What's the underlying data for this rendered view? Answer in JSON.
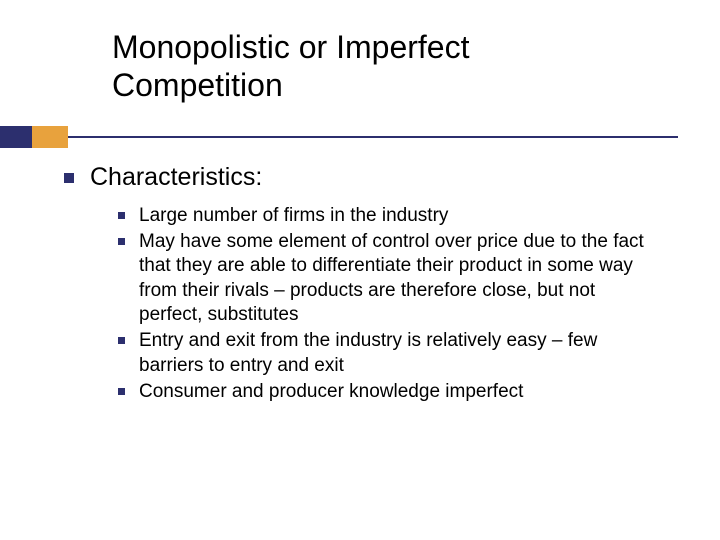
{
  "title_line1": "Monopolistic or Imperfect",
  "title_line2": "Competition",
  "section_heading": "Characteristics:",
  "bullets": [
    "Large number of firms in the industry",
    "May have some element of control over price due to the fact that they are able to differentiate their product in some way from their rivals – products are therefore close, but not perfect, substitutes",
    "Entry and exit from the industry is relatively easy – few barriers to entry and exit",
    "Consumer and producer knowledge imperfect"
  ],
  "colors": {
    "navy": "#2c2f6e",
    "orange": "#e8a23d",
    "text": "#000000",
    "background": "#ffffff"
  },
  "typography": {
    "title_fontsize": 32,
    "heading_fontsize": 25,
    "body_fontsize": 19,
    "font_family": "Verdana"
  }
}
